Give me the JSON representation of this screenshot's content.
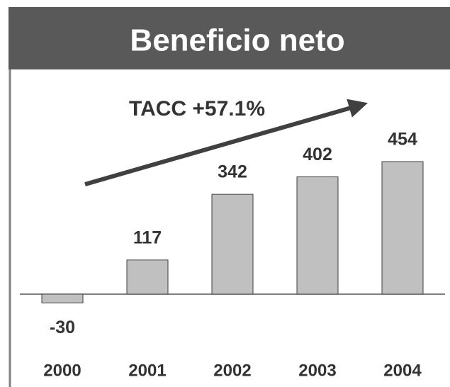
{
  "chart_data": {
    "type": "bar",
    "title": "Beneficio neto",
    "annotation": "TACC +57.1%",
    "categories": [
      "2000",
      "2001",
      "2002",
      "2003",
      "2004"
    ],
    "values": [
      -30,
      117,
      342,
      402,
      454
    ],
    "color": "#c0c0c0"
  }
}
